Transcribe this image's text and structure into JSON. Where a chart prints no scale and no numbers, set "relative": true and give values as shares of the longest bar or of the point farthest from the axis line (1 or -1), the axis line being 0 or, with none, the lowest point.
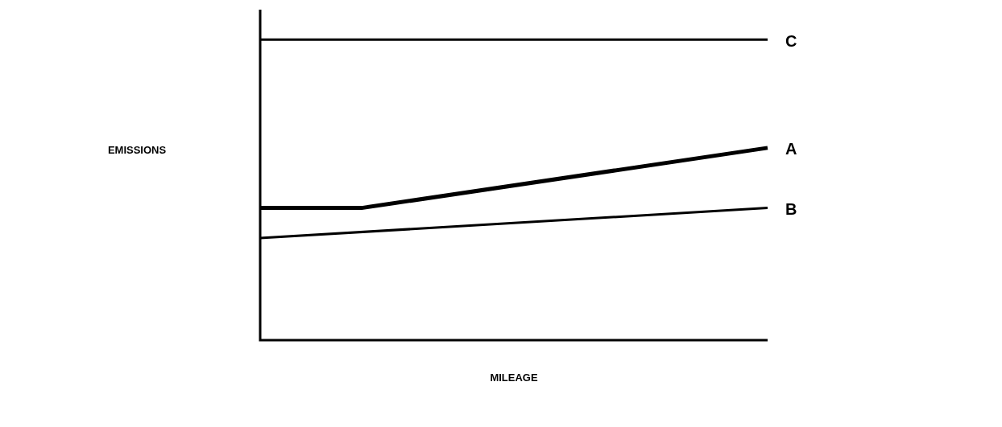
{
  "chart_data": {
    "type": "line",
    "xlabel": "MILEAGE",
    "annotations": [
      "EMISSIONS"
    ],
    "relative": true,
    "legend": false,
    "marker": "none",
    "line_style": "solid",
    "categories": [
      null,
      null,
      null,
      null,
      null,
      null
    ],
    "series": [
      {
        "name": "C",
        "color": "#000000",
        "values": [
          1,
          null,
          null,
          null,
          null,
          1
        ]
      },
      {
        "name": "A",
        "color": "#000000",
        "values": [
          0.44,
          0.44,
          null,
          null,
          null,
          0.64
        ]
      },
      {
        "name": "B",
        "color": "#000000",
        "values": [
          0.34,
          null,
          null,
          null,
          null,
          0.44
        ]
      }
    ]
  }
}
